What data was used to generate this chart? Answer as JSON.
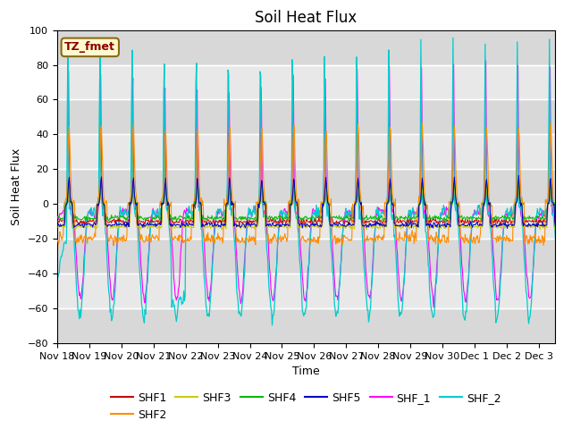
{
  "title": "Soil Heat Flux",
  "xlabel": "Time",
  "ylabel": "Soil Heat Flux",
  "ylim": [
    -80,
    100
  ],
  "x_tick_labels": [
    "Nov 18",
    "Nov 19",
    "Nov 20",
    "Nov 21",
    "Nov 22",
    "Nov 23",
    "Nov 24",
    "Nov 25",
    "Nov 26",
    "Nov 27",
    "Nov 28",
    "Nov 29",
    "Nov 30",
    "Dec 1",
    "Dec 2",
    "Dec 3"
  ],
  "annotation_text": "TZ_fmet",
  "annotation_color": "#8B0000",
  "annotation_bg": "#FFFACD",
  "annotation_border": "#8B6914",
  "series_colors": {
    "SHF1": "#CC0000",
    "SHF2": "#FF8C00",
    "SHF3": "#CCCC00",
    "SHF4": "#00BB00",
    "SHF5": "#0000CC",
    "SHF_1": "#FF00FF",
    "SHF_2": "#00CCCC"
  },
  "plot_bg_color": "#E8E8E8",
  "grid_color": "#FFFFFF",
  "title_fontsize": 12,
  "label_fontsize": 9,
  "tick_fontsize": 8,
  "legend_fontsize": 9
}
